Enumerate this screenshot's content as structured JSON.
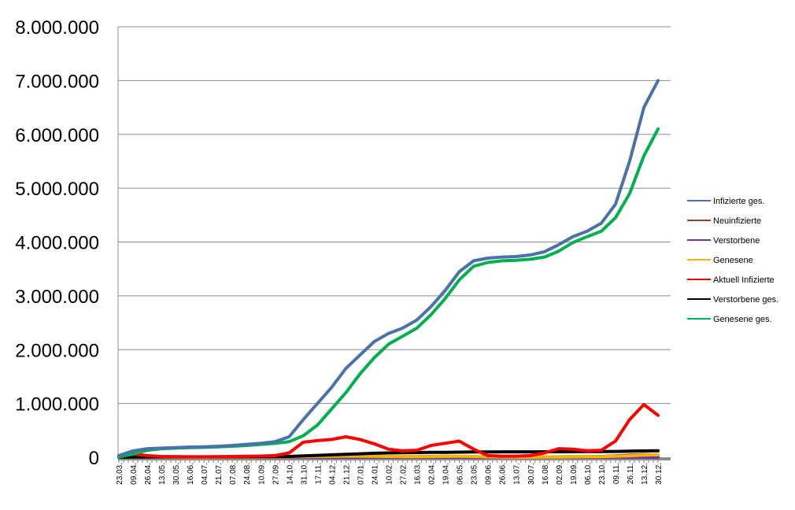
{
  "chart_data": {
    "type": "line",
    "title": "",
    "xlabel": "",
    "ylabel": "",
    "ylim": [
      0,
      8000000
    ],
    "y_ticks": [
      0,
      1000000,
      2000000,
      3000000,
      4000000,
      5000000,
      6000000,
      7000000,
      8000000
    ],
    "y_tick_labels": [
      "0",
      "1.000.000",
      "2.000.000",
      "3.000.000",
      "4.000.000",
      "5.000.000",
      "6.000.000",
      "7.000.000",
      "8.000.000"
    ],
    "grid": true,
    "legend_position": "right",
    "categories": [
      "23.03.",
      "09.04.",
      "26.04.",
      "13.05.",
      "30.05.",
      "16.06.",
      "04.07.",
      "21.07.",
      "07.08.",
      "24.08.",
      "10.09.",
      "27.09.",
      "14.10.",
      "31.10.",
      "17.11.",
      "04.12.",
      "21.12.",
      "07.01.",
      "24.01.",
      "10.02.",
      "27.02.",
      "16.03.",
      "02.04.",
      "19.04.",
      "06.05.",
      "23.05.",
      "09.06.",
      "26.06.",
      "13.07.",
      "30.07.",
      "16.08.",
      "02.09.",
      "19.09.",
      "06.10.",
      "23.10.",
      "09.11.",
      "26.11.",
      "13.12.",
      "30.12."
    ],
    "series": [
      {
        "name": "Infizierte ges.",
        "color": "#4a72a8",
        "values": [
          30000,
          120000,
          160000,
          170000,
          180000,
          190000,
          195000,
          205000,
          220000,
          240000,
          260000,
          290000,
          380000,
          700000,
          1000000,
          1300000,
          1650000,
          1900000,
          2150000,
          2300000,
          2400000,
          2550000,
          2800000,
          3100000,
          3450000,
          3650000,
          3700000,
          3720000,
          3730000,
          3760000,
          3820000,
          3950000,
          4100000,
          4200000,
          4350000,
          4700000,
          5500000,
          6500000,
          7000000
        ]
      },
      {
        "name": "Neuinfizierte",
        "color": "#9c3b36",
        "values": [
          2000,
          3000,
          2000,
          1000,
          1000,
          1000,
          1000,
          2000,
          3000,
          4000,
          5000,
          8000,
          15000,
          20000,
          20000,
          20000,
          20000,
          18000,
          15000,
          12000,
          10000,
          12000,
          15000,
          18000,
          15000,
          8000,
          4000,
          2000,
          2000,
          3000,
          5000,
          8000,
          10000,
          10000,
          15000,
          25000,
          40000,
          50000,
          40000
        ]
      },
      {
        "name": "Verstorbene",
        "color": "#7030a0",
        "values": [
          100,
          200,
          200,
          100,
          100,
          50,
          50,
          50,
          50,
          50,
          100,
          100,
          200,
          300,
          400,
          500,
          600,
          800,
          900,
          800,
          600,
          500,
          500,
          500,
          400,
          300,
          200,
          100,
          100,
          100,
          100,
          100,
          200,
          200,
          300,
          400,
          600,
          800,
          700
        ]
      },
      {
        "name": "Genesene",
        "color": "#f2b500",
        "values": [
          1000,
          5000,
          6000,
          3000,
          2000,
          1000,
          1000,
          1000,
          2000,
          3000,
          4000,
          5000,
          8000,
          12000,
          15000,
          18000,
          20000,
          20000,
          18000,
          15000,
          12000,
          11000,
          13000,
          16000,
          18000,
          15000,
          8000,
          4000,
          2000,
          2000,
          3000,
          5000,
          8000,
          10000,
          12000,
          18000,
          28000,
          40000,
          45000
        ]
      },
      {
        "name": "Aktuell Infizierte",
        "color": "#ff0000",
        "values": [
          25000,
          60000,
          30000,
          15000,
          10000,
          8000,
          8000,
          10000,
          15000,
          18000,
          22000,
          30000,
          80000,
          280000,
          310000,
          330000,
          380000,
          330000,
          250000,
          150000,
          120000,
          130000,
          220000,
          260000,
          300000,
          150000,
          30000,
          20000,
          20000,
          30000,
          80000,
          160000,
          150000,
          120000,
          130000,
          300000,
          700000,
          980000,
          780000
        ]
      },
      {
        "name": "Verstorbene ges.",
        "color": "#000000",
        "values": [
          1000,
          5000,
          8000,
          9000,
          9500,
          9500,
          9500,
          9500,
          9500,
          10000,
          10000,
          12000,
          15000,
          25000,
          35000,
          45000,
          55000,
          65000,
          75000,
          80000,
          85000,
          88000,
          90000,
          92000,
          95000,
          98000,
          100000,
          101000,
          101000,
          101000,
          102000,
          103000,
          104000,
          105000,
          106000,
          108000,
          112000,
          118000,
          122000
        ]
      },
      {
        "name": "Genesene ges.",
        "color": "#00b050",
        "values": [
          5000,
          60000,
          130000,
          160000,
          170000,
          180000,
          185000,
          195000,
          205000,
          220000,
          240000,
          260000,
          290000,
          400000,
          600000,
          900000,
          1200000,
          1550000,
          1850000,
          2100000,
          2250000,
          2400000,
          2650000,
          2950000,
          3300000,
          3550000,
          3620000,
          3650000,
          3660000,
          3680000,
          3720000,
          3830000,
          3990000,
          4100000,
          4200000,
          4450000,
          4900000,
          5600000,
          6100000
        ]
      }
    ]
  }
}
